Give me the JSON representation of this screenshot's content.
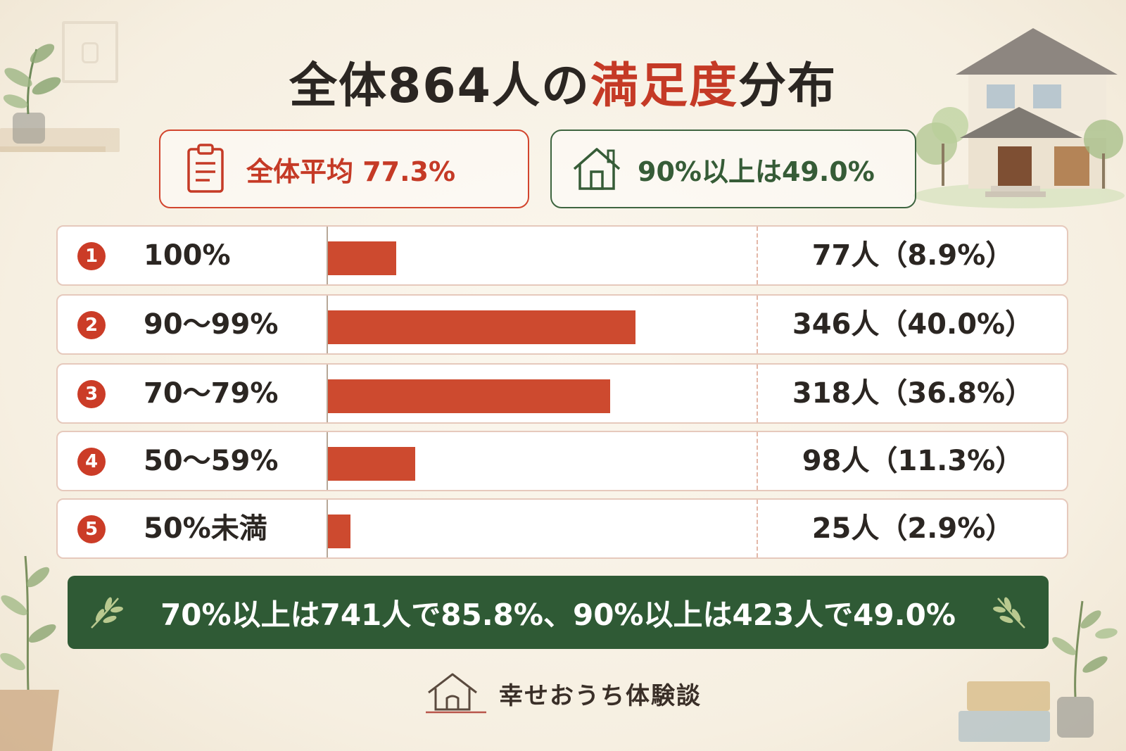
{
  "header": {
    "title_pre": "全体864人の",
    "title_accent": "満足度",
    "title_post": "分布"
  },
  "stats": {
    "average": "全体平均 77.3%",
    "over90": "90%以上は49.0%"
  },
  "chart_data": {
    "type": "bar",
    "title": "全体864人の満足度分布",
    "categories": [
      "100%",
      "90〜99%",
      "70〜79%",
      "50〜59%",
      "50%未満"
    ],
    "values": [
      77,
      346,
      318,
      98,
      25
    ],
    "percentages": [
      8.9,
      40.0,
      36.8,
      11.3,
      2.9
    ],
    "value_labels": [
      "77人（8.9%）",
      "346人（40.0%）",
      "318人（36.8%）",
      "98人（11.3%）",
      "25人（2.9%）"
    ],
    "rank_labels": [
      "1",
      "2",
      "3",
      "4",
      "5"
    ],
    "xlim": [
      0,
      480
    ],
    "grid": false,
    "orientation": "horizontal"
  },
  "summary": "70%以上は741人で85.8%、90%以上は423人で49.0%",
  "footer": {
    "brand": "幸せおうち体験談"
  },
  "icons": {
    "stat_average": "clipboard-icon",
    "stat_over90": "house-icon",
    "banner": "leaf-branch-icon",
    "footer": "house-logo-icon"
  },
  "colors": {
    "accent_red": "#c53a26",
    "bar_red": "#cd4a2f",
    "banner_green": "#2f5a35",
    "stat_green": "#365c37",
    "background": "#f8f2e6"
  }
}
